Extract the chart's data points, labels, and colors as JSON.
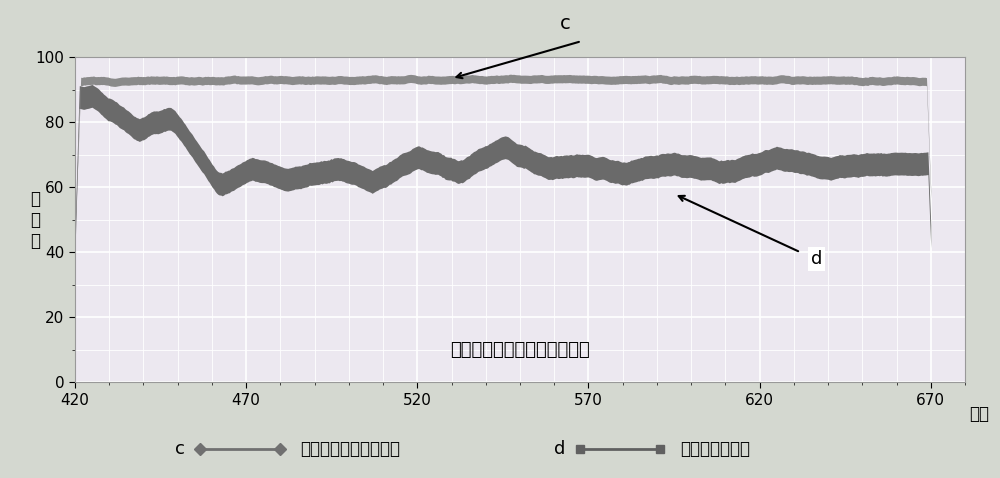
{
  "title_above": "c",
  "xlabel": "波长",
  "ylabel": "透\n过\n率",
  "xlabel_inside": "极化分光器反射光路光学特性",
  "xlim": [
    420,
    680
  ],
  "ylim": [
    0,
    100
  ],
  "xticks": [
    420,
    470,
    520,
    570,
    620,
    670
  ],
  "yticks": [
    0,
    20,
    40,
    60,
    80,
    100
  ],
  "bg_color": "#dde8dd",
  "plot_bg_color": "#e8e8f0",
  "grid_major_color": "#ffffff",
  "grid_minor_color": "#e0dce8",
  "line_color": "#555555",
  "fill_color": "#666666",
  "legend_c_label": "本发明中的极化分光器",
  "legend_d_label": "普通偏振分束器"
}
